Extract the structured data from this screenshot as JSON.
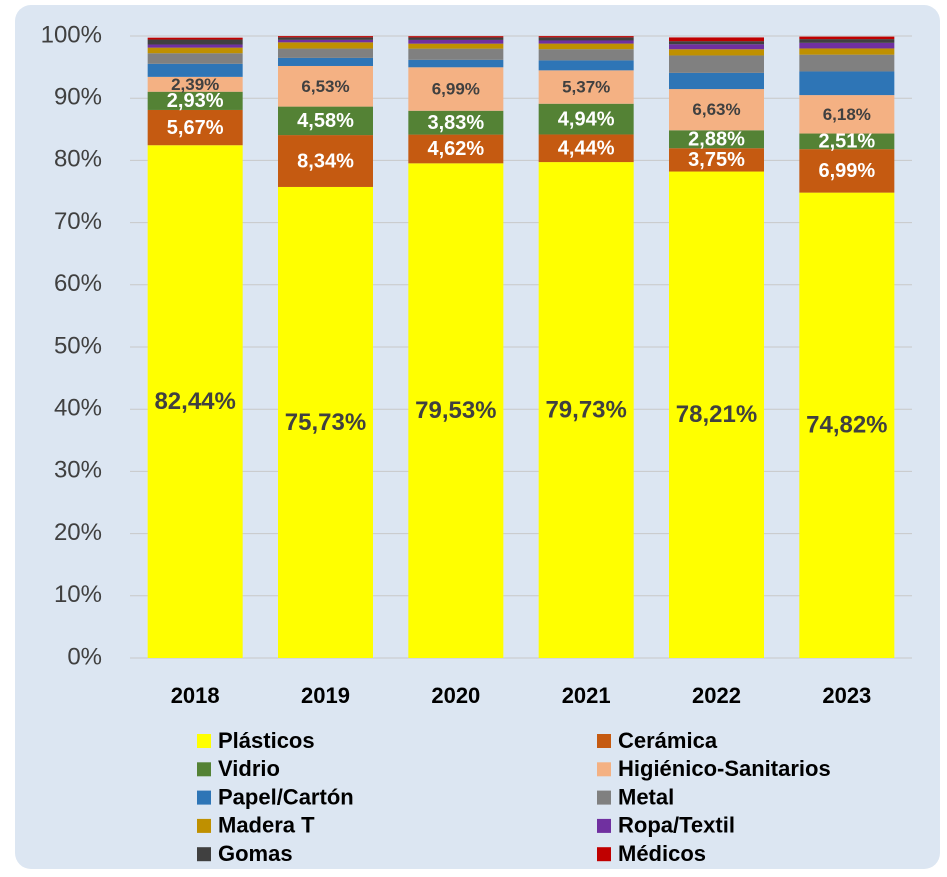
{
  "chart_data": {
    "type": "stacked_bar",
    "categories": [
      "2018",
      "2019",
      "2020",
      "2021",
      "2022",
      "2023"
    ],
    "series": [
      {
        "name": "Plásticos",
        "color": "#ffff00",
        "label_color": "#404040",
        "values": [
          82.44,
          75.73,
          79.53,
          79.73,
          78.21,
          74.82
        ],
        "value_labels": [
          "82,44%",
          "75,73%",
          "79,53%",
          "79,73%",
          "78,21%",
          "74,82%"
        ]
      },
      {
        "name": "Cerámica",
        "color": "#c55a11",
        "label_color": "#ffffff",
        "values": [
          5.67,
          8.34,
          4.62,
          4.44,
          3.75,
          6.99
        ],
        "value_labels": [
          "5,67%",
          "8,34%",
          "4,62%",
          "4,44%",
          "3,75%",
          "6,99%"
        ]
      },
      {
        "name": "Vidrio",
        "color": "#548235",
        "label_color": "#ffffff",
        "values": [
          2.93,
          4.58,
          3.83,
          4.94,
          2.88,
          2.51
        ],
        "value_labels": [
          "2,93%",
          "4,58%",
          "3,83%",
          "4,94%",
          "2,88%",
          "2,51%"
        ]
      },
      {
        "name": "Higiénico-Sanitarios",
        "color": "#f4b183",
        "label_color": "#404040",
        "values": [
          2.39,
          6.53,
          6.99,
          5.37,
          6.63,
          6.18
        ],
        "value_labels": [
          "2,39%",
          "6,53%",
          "6,99%",
          "5,37%",
          "6,63%",
          "6,18%"
        ]
      },
      {
        "name": "Papel/Cartón",
        "color": "#2e75b6",
        "values": [
          2.1,
          1.3,
          1.2,
          1.6,
          2.6,
          3.8
        ]
      },
      {
        "name": "Metal",
        "color": "#808080",
        "values": [
          1.7,
          1.5,
          1.8,
          1.8,
          2.8,
          2.7
        ]
      },
      {
        "name": "Madera T",
        "color": "#bf9000",
        "values": [
          0.9,
          1.0,
          0.8,
          0.9,
          1.0,
          1.0
        ]
      },
      {
        "name": "Ropa/Textil",
        "color": "#7030a0",
        "values": [
          0.5,
          0.4,
          0.6,
          0.5,
          0.8,
          0.9
        ]
      },
      {
        "name": "Gomas",
        "color": "#404040",
        "values": [
          0.8,
          0.4,
          0.4,
          0.5,
          0.5,
          0.6
        ]
      },
      {
        "name": "Médicos",
        "color": "#c00000",
        "values": [
          0.3,
          0.2,
          0.2,
          0.2,
          0.6,
          0.4
        ]
      }
    ],
    "ylim": [
      0,
      100
    ],
    "yticks": [
      {
        "value": 0,
        "label": "0%"
      },
      {
        "value": 10,
        "label": "10%"
      },
      {
        "value": 20,
        "label": "20%"
      },
      {
        "value": 30,
        "label": "30%"
      },
      {
        "value": 40,
        "label": "40%"
      },
      {
        "value": 50,
        "label": "50%"
      },
      {
        "value": 60,
        "label": "60%"
      },
      {
        "value": 70,
        "label": "70%"
      },
      {
        "value": 80,
        "label": "80%"
      },
      {
        "value": 90,
        "label": "90%"
      },
      {
        "value": 100,
        "label": "100%"
      }
    ],
    "grid": true,
    "legend": "bottom"
  }
}
